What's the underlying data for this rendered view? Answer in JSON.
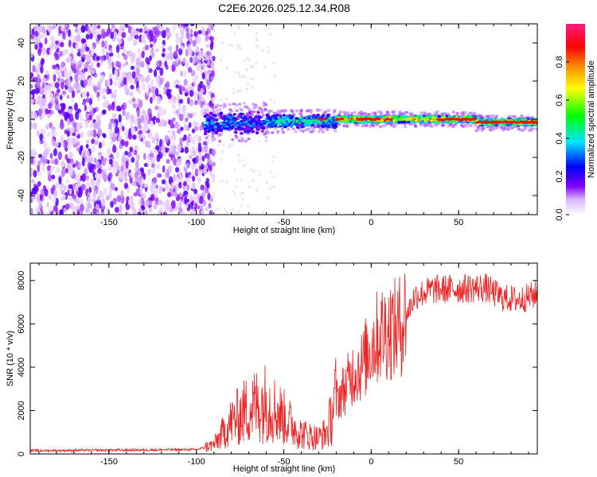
{
  "title": "C2E6.2026.025.12.34.R08",
  "chart_data": [
    {
      "type": "heatmap",
      "xlabel": "Height of straight line (km)",
      "ylabel": "Frequency (Hz)",
      "xlim": [
        -195,
        95
      ],
      "ylim": [
        -50,
        50
      ],
      "xticks": [
        -150,
        -100,
        -50,
        0,
        50
      ],
      "yticks": [
        -40,
        -20,
        0,
        20,
        40
      ],
      "colorbar": {
        "label": "Normalized spectral amplitude",
        "range": [
          0,
          1
        ],
        "ticks": [
          0.0,
          0.2,
          0.4,
          0.6,
          0.8
        ],
        "tick_labels": [
          "0.0",
          "0.2",
          "0.4",
          "0.6",
          "0.8"
        ]
      },
      "regions": [
        {
          "x_range": [
            -195,
            -90
          ],
          "description": "broadband noise, amplitude ~0.05-0.2"
        },
        {
          "x_range": [
            -95,
            -20
          ],
          "center_freq": -2,
          "amplitude": 0.3
        },
        {
          "x_range": [
            -20,
            95
          ],
          "center_freq": 0,
          "amplitude": 0.9
        }
      ]
    },
    {
      "type": "line",
      "xlabel": "Height of straight line (km)",
      "ylabel": "SNR (10 * v/v)",
      "xlim": [
        -195,
        95
      ],
      "ylim": [
        0,
        8800
      ],
      "xticks": [
        -150,
        -100,
        -50,
        0,
        50
      ],
      "yticks": [
        0,
        2000,
        4000,
        6000,
        8000
      ],
      "series": [
        {
          "name": "SNR",
          "color": "#ee2222",
          "envelope": [
            {
              "x": -195,
              "y": 150
            },
            {
              "x": -100,
              "y": 200
            },
            {
              "x": -90,
              "y": 400
            },
            {
              "x": -80,
              "y": 1400
            },
            {
              "x": -70,
              "y": 2000
            },
            {
              "x": -60,
              "y": 2300
            },
            {
              "x": -50,
              "y": 1600
            },
            {
              "x": -40,
              "y": 900
            },
            {
              "x": -30,
              "y": 700
            },
            {
              "x": -25,
              "y": 1000
            },
            {
              "x": -20,
              "y": 2600
            },
            {
              "x": -15,
              "y": 3200
            },
            {
              "x": -10,
              "y": 4000
            },
            {
              "x": -5,
              "y": 4300
            },
            {
              "x": 0,
              "y": 5300
            },
            {
              "x": 5,
              "y": 5800
            },
            {
              "x": 10,
              "y": 6100
            },
            {
              "x": 15,
              "y": 6000
            },
            {
              "x": 20,
              "y": 6800
            },
            {
              "x": 25,
              "y": 7800
            },
            {
              "x": 35,
              "y": 8100
            },
            {
              "x": 50,
              "y": 8150
            },
            {
              "x": 65,
              "y": 8200
            },
            {
              "x": 75,
              "y": 7700
            },
            {
              "x": 85,
              "y": 7600
            },
            {
              "x": 95,
              "y": 7900
            }
          ]
        }
      ]
    }
  ]
}
